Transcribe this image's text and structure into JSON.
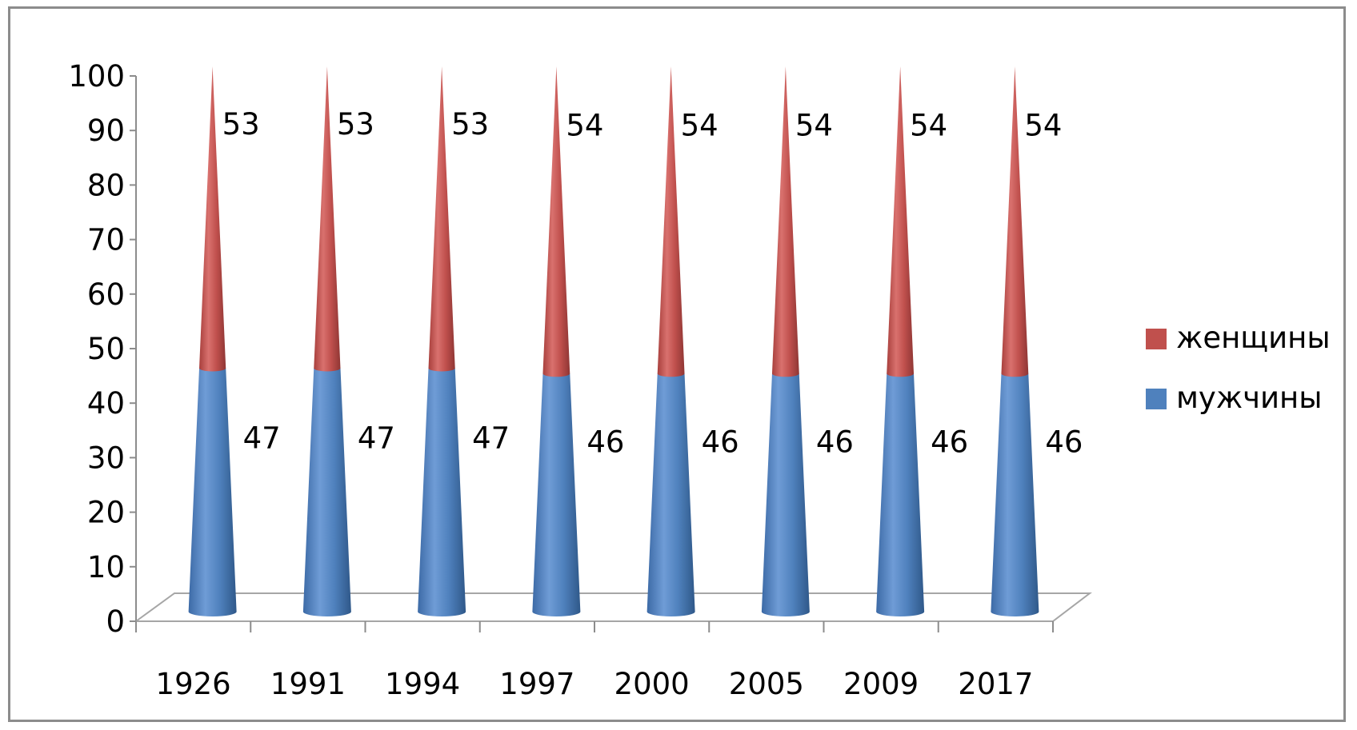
{
  "chart_data": {
    "type": "bar",
    "variant": "stacked-cone-3d",
    "categories": [
      "1926",
      "1991",
      "1994",
      "1997",
      "2000",
      "2005",
      "2009",
      "2017"
    ],
    "series": [
      {
        "name": "мужчины",
        "color": "#4f81bd",
        "values": [
          47,
          47,
          47,
          46,
          46,
          46,
          46,
          46
        ]
      },
      {
        "name": "женщины",
        "color": "#c0504d",
        "values": [
          53,
          53,
          53,
          54,
          54,
          54,
          54,
          54
        ]
      }
    ],
    "ylim": [
      0,
      100
    ],
    "yticks": [
      "0",
      "10",
      "20",
      "30",
      "40",
      "50",
      "60",
      "70",
      "80",
      "90",
      "100"
    ],
    "legend": "right",
    "grid": false
  }
}
